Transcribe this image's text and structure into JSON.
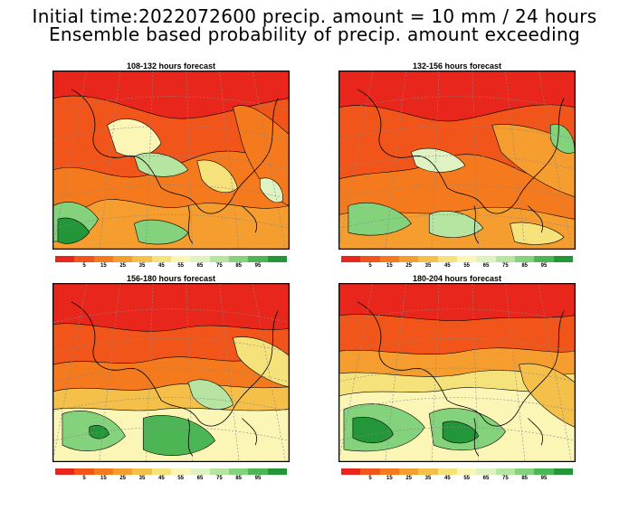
{
  "title": {
    "line1": "Initial time:2022072600 precip. amount = 10 mm / 24 hours",
    "line2": "Ensemble based probability of precip. amount exceeding"
  },
  "panels": [
    {
      "label": "108-132 hours forecast",
      "variant": 0
    },
    {
      "label": "132-156 hours forecast",
      "variant": 1
    },
    {
      "label": "156-180 hours forecast",
      "variant": 2
    },
    {
      "label": "180-204 hours forecast",
      "variant": 3
    }
  ],
  "colorbar": {
    "ticks": [
      "5",
      "15",
      "25",
      "35",
      "45",
      "55",
      "65",
      "75",
      "85",
      "95"
    ],
    "colors": [
      "#e8261c",
      "#f2551a",
      "#f57a1d",
      "#f59d2e",
      "#f5c04a",
      "#f6e27a",
      "#fbf6b6",
      "#dff2c2",
      "#b6e5a2",
      "#84d27c",
      "#4cb654",
      "#24963a"
    ]
  }
}
